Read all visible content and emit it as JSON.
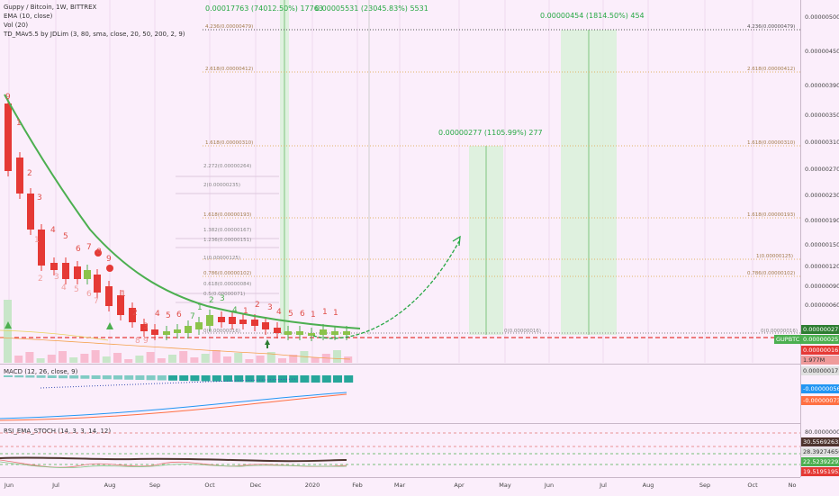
{
  "legend": {
    "symbol": "Guppy / Bitcoin, 1W, BITTREX",
    "ema": "EMA (10, close)",
    "vol": "Vol (20)",
    "td": "TD_MAv5.5 by JDLim (3, 80, sma, close, 20, 50, 200, 2, 9)",
    "macd": "MACD (12, 26, close, 9)",
    "rsi": "RSI_EMA_STOCH (14, 3, 3, 14, 12)"
  },
  "annotations": {
    "target1": "0.00017763 (74012.50%) 17763",
    "target1b": "0.00005531 (23045.83%) 5531",
    "target2": "0.00000454 (1814.50%) 454",
    "target3": "0.00000277 (1105.99%) 277"
  },
  "fib_labels": {
    "a": "4.236(0.00000479)",
    "b": "4.236(0.00000479)",
    "c": "2.618(0.00000412)",
    "d": "2.618(0.00000412)",
    "e": "1.618(0.00000310)",
    "f": "1.618(0.00000310)",
    "g": "2.272(0.00000264)",
    "h": "2(0.00000235)",
    "i": "1.618(0.00000193)",
    "j": "1.618(0.00000193)",
    "k": "1.382(0.00000167)",
    "l": "1.236(0.00000151)",
    "m": "1(0.00000125)",
    "n": "1(0.00000125)",
    "o": "0.786(0.00000102)",
    "p": "0.786(0.00000102)",
    "q": "0.618(0.00000084)",
    "r": "0.5(0.00000071)",
    "s": "0(0.00000016)",
    "t": "0(0.00000016)",
    "u": "0(0.00000016)"
  },
  "td_numbers": [
    "9",
    "1",
    "2",
    "3",
    "4",
    "5",
    "6",
    "7",
    "8",
    "9",
    "1",
    "2",
    "3",
    "4",
    "5",
    "6",
    "7",
    "1",
    "2",
    "3",
    "4",
    "1",
    "2",
    "3",
    "4",
    "5",
    "6",
    "1",
    "1",
    "1"
  ],
  "td_red_faded": [
    "1",
    "2",
    "3",
    "4",
    "5",
    "6",
    "7",
    "8",
    "9"
  ],
  "price_axis": {
    "ticks": [
      "0.00000500",
      "0.00000450",
      "0.00000390",
      "0.00000350",
      "0.00000310",
      "0.00000270",
      "0.00000230",
      "0.00000190",
      "0.00000150",
      "0.00000120",
      "0.00000090",
      "0.00000060"
    ],
    "tag_last": "0.00000027",
    "tag_symbol": "GUPBTC",
    "tag_price": "0.00000025",
    "tag_low": "0.00000016",
    "tag_vol": "1.977M",
    "macd_ticks": [
      "0.00000017",
      "-0.00000056",
      "-0.00000073"
    ],
    "rsi_ticks": [
      "80.00000000",
      "30.55692635",
      "28.39274650",
      "22.52392292",
      "19.51951952"
    ]
  },
  "time_axis": [
    "Jun",
    "Jul",
    "Aug",
    "Sep",
    "Oct",
    "Dec",
    "2020",
    "Feb",
    "Mar",
    "Apr",
    "May",
    "Jun",
    "Jul",
    "Aug",
    "Sep",
    "Oct",
    "No"
  ],
  "colors": {
    "bull": "#4caf50",
    "bear": "#e53935",
    "ema": "#4caf50",
    "bg": "#fbeefb",
    "target_box": "#d8f0d8",
    "tag_green": "#4caf50",
    "tag_red": "#e53935"
  }
}
